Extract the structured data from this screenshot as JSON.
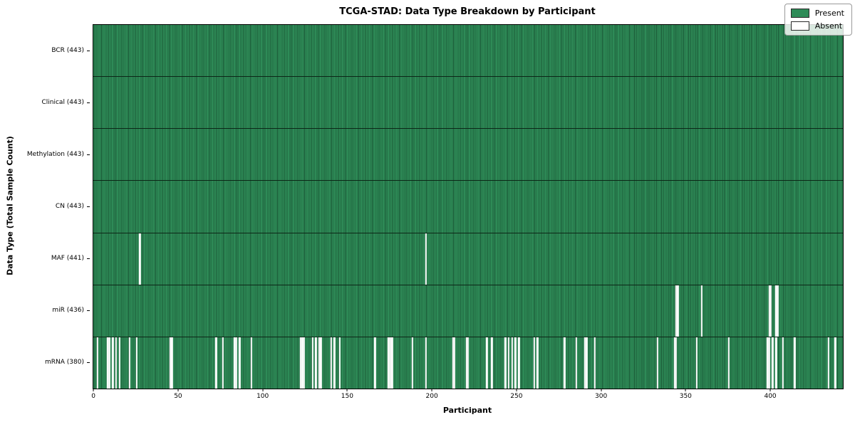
{
  "title": "TCGA-STAD: Data Type Breakdown by Participant",
  "xlabel": "Participant",
  "ylabel": "Data Type (Total Sample Count)",
  "legend": {
    "present_label": "Present",
    "absent_label": "Absent"
  },
  "colors": {
    "present": "#2e8b57",
    "bar_edge": "#1a5736",
    "absent": "#ffffff",
    "row_separator": "#0c2617",
    "frame": "#000000"
  },
  "x_ticks": [
    0,
    50,
    100,
    150,
    200,
    250,
    300,
    350,
    400
  ],
  "chart_data": {
    "type": "heatmap",
    "title": "TCGA-STAD: Data Type Breakdown by Participant",
    "xlabel": "Participant",
    "ylabel": "Data Type (Total Sample Count)",
    "legend": [
      "Present",
      "Absent"
    ],
    "legend_position": "upper right",
    "n_participants": 443,
    "xlim": [
      -0.5,
      442.5
    ],
    "x_tick_values": [
      0,
      50,
      100,
      150,
      200,
      250,
      300,
      350,
      400
    ],
    "rows": [
      {
        "data_type": "BCR",
        "label": "BCR (443)",
        "present_count": 443,
        "absent_participants": []
      },
      {
        "data_type": "Clinical",
        "label": "Clinical (443)",
        "present_count": 443,
        "absent_participants": []
      },
      {
        "data_type": "Methylation",
        "label": "Methylation (443)",
        "present_count": 443,
        "absent_participants": []
      },
      {
        "data_type": "CN",
        "label": "CN (443)",
        "present_count": 443,
        "absent_participants": []
      },
      {
        "data_type": "MAF",
        "label": "MAF (441)",
        "present_count": 441,
        "absent_participants": [
          27,
          196
        ]
      },
      {
        "data_type": "miR",
        "label": "miR (436)",
        "present_count": 436,
        "absent_participants": [
          344,
          345,
          359,
          399,
          400,
          403,
          404
        ]
      },
      {
        "data_type": "mRNA",
        "label": "mRNA (380)",
        "present_count": 380,
        "absent_participants": [
          2,
          8,
          9,
          11,
          13,
          15,
          21,
          25,
          45,
          46,
          72,
          76,
          83,
          84,
          86,
          93,
          122,
          123,
          124,
          129,
          131,
          133,
          134,
          140,
          142,
          145,
          166,
          174,
          175,
          176,
          188,
          196,
          212,
          213,
          220,
          221,
          232,
          235,
          243,
          245,
          247,
          249,
          251,
          260,
          262,
          278,
          285,
          290,
          291,
          296,
          333,
          343,
          344,
          356,
          375,
          398,
          399,
          401,
          403,
          407,
          414,
          434,
          438
        ]
      }
    ]
  }
}
